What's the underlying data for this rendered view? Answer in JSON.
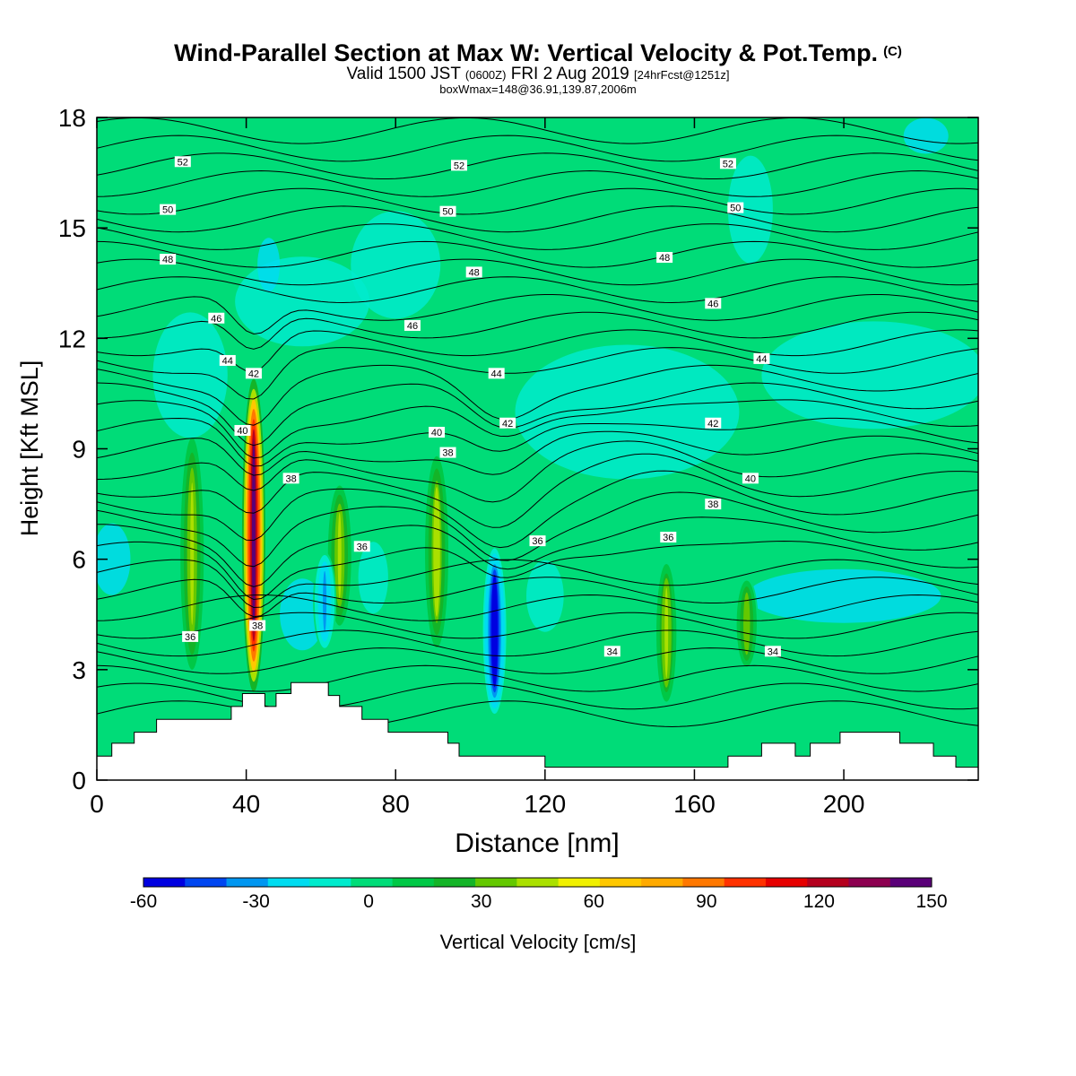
{
  "header": {
    "title": "Wind-Parallel Section at Max W: Vertical Velocity & Pot.Temp.",
    "title_mark": "(C)",
    "valid_a": "Valid 1500 JST",
    "valid_b": "(0600Z)",
    "valid_c": "FRI 2 Aug 2019",
    "valid_d": "[24hrFcst@1251z]",
    "box": "boxWmax=148@36.91,139.87,2006m"
  },
  "chart_data": {
    "type": "heatmap",
    "xlabel": "Distance [nm]",
    "ylabel": "Height [Kft MSL]",
    "xlim": [
      0,
      236
    ],
    "ylim": [
      0,
      18
    ],
    "x_ticks": [
      0,
      40,
      80,
      120,
      160,
      200
    ],
    "y_ticks": [
      0,
      3,
      6,
      9,
      12,
      15,
      18
    ],
    "colorbar": {
      "label": "Vertical Velocity [cm/s]",
      "ticks": [
        -60,
        -30,
        0,
        30,
        60,
        90,
        120,
        150
      ],
      "bounds": [
        -60,
        150
      ],
      "colors": [
        "#0000e0",
        "#0046f0",
        "#0096f0",
        "#00dcf0",
        "#00ebcd",
        "#00dc78",
        "#00c846",
        "#14b428",
        "#64c800",
        "#aae000",
        "#f0f000",
        "#ffc800",
        "#ffaa00",
        "#ff7800",
        "#ff3200",
        "#e60000",
        "#b4001e",
        "#8c0050",
        "#5a0078"
      ]
    },
    "updraft_cores": [
      {
        "x": 42,
        "y_base": 2.4,
        "y_top": 10.9,
        "w_max": 148
      },
      {
        "x": 25.5,
        "y_base": 3.0,
        "y_top": 9.3,
        "w_max": 45
      },
      {
        "x": 65,
        "y_base": 4.2,
        "y_top": 8.0,
        "w_max": 45
      },
      {
        "x": 91,
        "y_base": 3.6,
        "y_top": 8.8,
        "w_max": 48
      },
      {
        "x": 152.5,
        "y_base": 2.0,
        "y_top": 6.0,
        "w_max": 40
      },
      {
        "x": 174,
        "y_base": 3.0,
        "y_top": 5.5,
        "w_max": 38
      }
    ],
    "downdraft_cores": [
      {
        "x": 106.5,
        "y_base": 1.8,
        "y_top": 6.3,
        "w_min": -58
      },
      {
        "x": 61,
        "y_base": 3.5,
        "y_top": 6.2,
        "w_min": -30
      }
    ],
    "theta_labels": [
      {
        "x": 23,
        "y": 16.8,
        "text": "52"
      },
      {
        "x": 97,
        "y": 16.7,
        "text": "52"
      },
      {
        "x": 169,
        "y": 16.75,
        "text": "52"
      },
      {
        "x": 19,
        "y": 15.5,
        "text": "50"
      },
      {
        "x": 94,
        "y": 15.45,
        "text": "50"
      },
      {
        "x": 171,
        "y": 15.55,
        "text": "50"
      },
      {
        "x": 19,
        "y": 14.15,
        "text": "48"
      },
      {
        "x": 101,
        "y": 13.8,
        "text": "48"
      },
      {
        "x": 152,
        "y": 14.2,
        "text": "48"
      },
      {
        "x": 32,
        "y": 12.55,
        "text": "46"
      },
      {
        "x": 84.5,
        "y": 12.35,
        "text": "46"
      },
      {
        "x": 165,
        "y": 12.95,
        "text": "46"
      },
      {
        "x": 35,
        "y": 11.4,
        "text": "44"
      },
      {
        "x": 107,
        "y": 11.05,
        "text": "44"
      },
      {
        "x": 178,
        "y": 11.45,
        "text": "44"
      },
      {
        "x": 42,
        "y": 11.05,
        "text": "42"
      },
      {
        "x": 110,
        "y": 9.7,
        "text": "42"
      },
      {
        "x": 165,
        "y": 9.7,
        "text": "42"
      },
      {
        "x": 39,
        "y": 9.5,
        "text": "40"
      },
      {
        "x": 91,
        "y": 9.45,
        "text": "40"
      },
      {
        "x": 175,
        "y": 8.2,
        "text": "40"
      },
      {
        "x": 52,
        "y": 8.2,
        "text": "38"
      },
      {
        "x": 94,
        "y": 8.9,
        "text": "38"
      },
      {
        "x": 165,
        "y": 7.5,
        "text": "38"
      },
      {
        "x": 71,
        "y": 6.35,
        "text": "36"
      },
      {
        "x": 118,
        "y": 6.5,
        "text": "36"
      },
      {
        "x": 153,
        "y": 6.6,
        "text": "36"
      },
      {
        "x": 25,
        "y": 3.9,
        "text": "36"
      },
      {
        "x": 43,
        "y": 4.2,
        "text": "38"
      },
      {
        "x": 138,
        "y": 3.5,
        "text": "34"
      },
      {
        "x": 181,
        "y": 3.5,
        "text": "34"
      }
    ],
    "terrain": [
      [
        0,
        0.65
      ],
      [
        4,
        0.65
      ],
      [
        4,
        1.0
      ],
      [
        10,
        1.0
      ],
      [
        10,
        1.3
      ],
      [
        16,
        1.3
      ],
      [
        16,
        1.65
      ],
      [
        36,
        1.65
      ],
      [
        36,
        2.0
      ],
      [
        39,
        2.0
      ],
      [
        39,
        2.35
      ],
      [
        45,
        2.35
      ],
      [
        45,
        2.0
      ],
      [
        48,
        2.0
      ],
      [
        48,
        2.35
      ],
      [
        52,
        2.35
      ],
      [
        52,
        2.65
      ],
      [
        62,
        2.65
      ],
      [
        62,
        2.3
      ],
      [
        65,
        2.3
      ],
      [
        65,
        2.0
      ],
      [
        71,
        2.0
      ],
      [
        71,
        1.65
      ],
      [
        78,
        1.65
      ],
      [
        78,
        1.3
      ],
      [
        94,
        1.3
      ],
      [
        94,
        1.0
      ],
      [
        97,
        1.0
      ],
      [
        97,
        0.65
      ],
      [
        120,
        0.65
      ],
      [
        120,
        0.35
      ],
      [
        169,
        0.35
      ],
      [
        169,
        0.65
      ],
      [
        178,
        0.65
      ],
      [
        178,
        1.0
      ],
      [
        187,
        1.0
      ],
      [
        187,
        0.65
      ],
      [
        191,
        0.65
      ],
      [
        191,
        1.0
      ],
      [
        199,
        1.0
      ],
      [
        199,
        1.3
      ],
      [
        215,
        1.3
      ],
      [
        215,
        1.0
      ],
      [
        224,
        1.0
      ],
      [
        224,
        0.65
      ],
      [
        230,
        0.65
      ],
      [
        230,
        0.35
      ],
      [
        236,
        0.35
      ]
    ]
  }
}
